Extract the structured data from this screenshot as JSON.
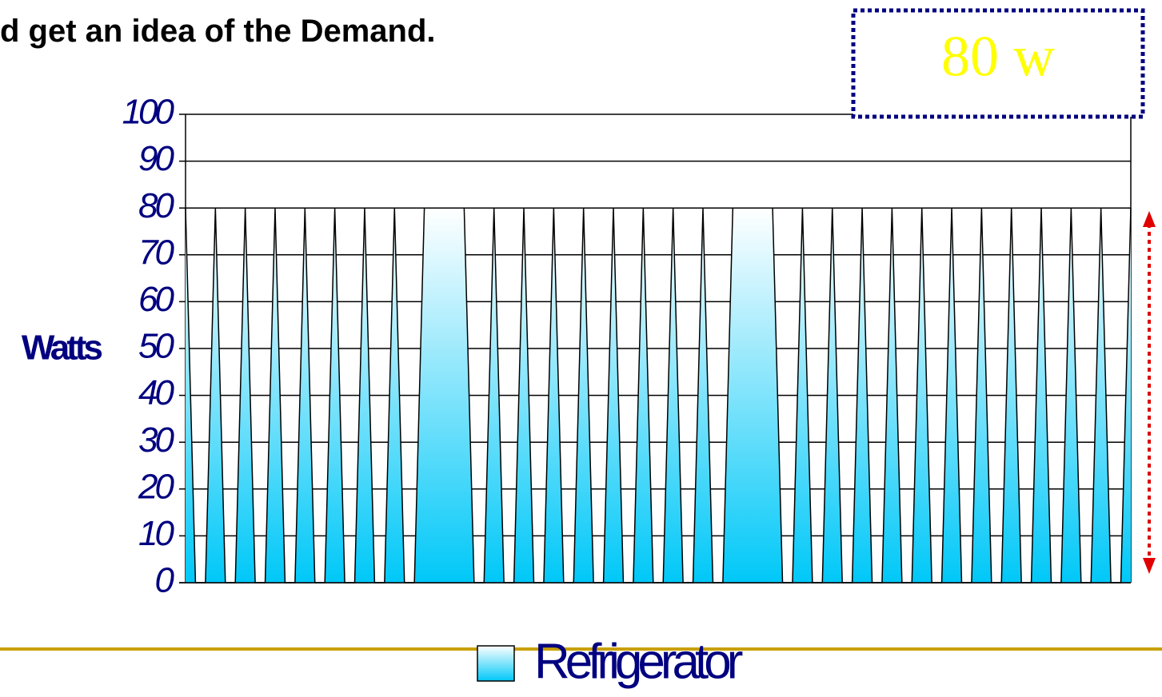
{
  "heading": "d get an idea of the Demand.",
  "callout": "80 w",
  "chart_data": {
    "type": "area",
    "ylabel": "Watts",
    "ylim": [
      0,
      100
    ],
    "yticks": [
      0,
      10,
      20,
      30,
      40,
      50,
      60,
      70,
      80,
      90,
      100
    ],
    "grid": true,
    "legend": "bottom",
    "series": [
      {
        "name": "Refrigerator",
        "color": "#00c8f8",
        "values": [
          80,
          0,
          0,
          80,
          0,
          0,
          80,
          0,
          0,
          80,
          0,
          0,
          80,
          0,
          0,
          80,
          0,
          0,
          80,
          0,
          0,
          80,
          0,
          0,
          80,
          80,
          80,
          80,
          80,
          0,
          0,
          80,
          0,
          0,
          80,
          0,
          0,
          80,
          0,
          0,
          80,
          0,
          0,
          80,
          0,
          0,
          80,
          0,
          0,
          80,
          0,
          0,
          80,
          0,
          0,
          80,
          80,
          80,
          80,
          80,
          0,
          0,
          80,
          0,
          0,
          80,
          0,
          0,
          80,
          0,
          0,
          80,
          0,
          0,
          80,
          0,
          0,
          80,
          0,
          0,
          80,
          0,
          0,
          80,
          0,
          0,
          80,
          0,
          0,
          80,
          0,
          0,
          80,
          0,
          0,
          80
        ]
      }
    ]
  }
}
